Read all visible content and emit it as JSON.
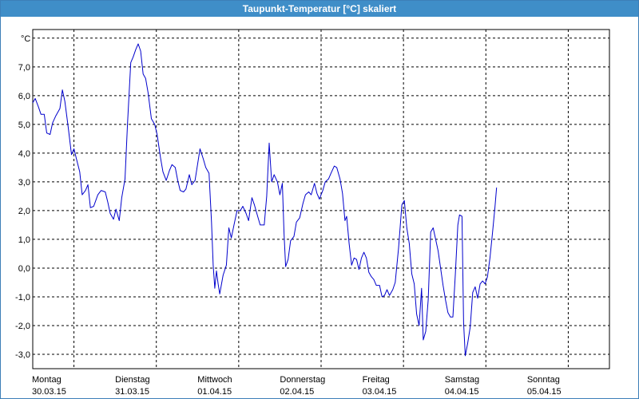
{
  "window": {
    "title": "Taupunkt-Temperatur [°C] skaliert"
  },
  "colors": {
    "line": "#0000cc",
    "grid": "#000000",
    "title_bg": "#3f8ec8"
  },
  "chart_data": {
    "type": "line",
    "title": "Taupunkt-Temperatur [°C] skaliert",
    "ylabel": "°C",
    "xlabel": "",
    "ylim": [
      -3.5,
      8.3
    ],
    "yticks": [
      -3,
      -2,
      -1,
      0,
      1,
      2,
      3,
      4,
      5,
      6,
      7
    ],
    "ytick_labels": [
      "-3,0",
      "-2,0",
      "-1,0",
      "0,0",
      "1,0",
      "2,0",
      "3,0",
      "4,0",
      "5,0",
      "6,0",
      "7,0"
    ],
    "xlim": [
      "30.03.15 00:00",
      "06.04.15 00:00"
    ],
    "xticks": [
      {
        "day": "Montag",
        "date": "30.03.15"
      },
      {
        "day": "Dienstag",
        "date": "31.03.15"
      },
      {
        "day": "Mittwoch",
        "date": "01.04.15"
      },
      {
        "day": "Donnerstag",
        "date": "02.04.15"
      },
      {
        "day": "Freitag",
        "date": "03.04.15"
      },
      {
        "day": "Samstag",
        "date": "04.04.15"
      },
      {
        "day": "Sonntag",
        "date": "05.04.15"
      }
    ],
    "grid": true,
    "x_unit": "days since 30.03.15 00:00",
    "series": [
      {
        "values": [
          [
            0.0,
            5.75
          ],
          [
            0.03,
            5.9
          ],
          [
            0.07,
            5.6
          ],
          [
            0.1,
            5.35
          ],
          [
            0.14,
            5.35
          ],
          [
            0.17,
            4.7
          ],
          [
            0.21,
            4.65
          ],
          [
            0.24,
            5.05
          ],
          [
            0.28,
            5.3
          ],
          [
            0.33,
            5.55
          ],
          [
            0.36,
            6.2
          ],
          [
            0.39,
            5.8
          ],
          [
            0.43,
            4.9
          ],
          [
            0.47,
            3.95
          ],
          [
            0.5,
            4.15
          ],
          [
            0.53,
            3.8
          ],
          [
            0.57,
            3.35
          ],
          [
            0.6,
            2.55
          ],
          [
            0.64,
            2.7
          ],
          [
            0.67,
            2.9
          ],
          [
            0.7,
            2.1
          ],
          [
            0.74,
            2.15
          ],
          [
            0.79,
            2.55
          ],
          [
            0.83,
            2.7
          ],
          [
            0.88,
            2.65
          ],
          [
            0.91,
            2.3
          ],
          [
            0.94,
            1.9
          ],
          [
            0.98,
            1.7
          ],
          [
            1.01,
            2.05
          ],
          [
            1.05,
            1.65
          ],
          [
            1.08,
            2.45
          ],
          [
            1.12,
            3.1
          ],
          [
            1.15,
            5.0
          ],
          [
            1.19,
            7.15
          ],
          [
            1.22,
            7.35
          ],
          [
            1.25,
            7.6
          ],
          [
            1.28,
            7.8
          ],
          [
            1.31,
            7.55
          ],
          [
            1.34,
            6.75
          ],
          [
            1.37,
            6.6
          ],
          [
            1.4,
            6.1
          ],
          [
            1.44,
            5.2
          ],
          [
            1.48,
            5.0
          ],
          [
            1.51,
            4.65
          ],
          [
            1.55,
            3.85
          ],
          [
            1.58,
            3.35
          ],
          [
            1.62,
            3.05
          ],
          [
            1.66,
            3.4
          ],
          [
            1.69,
            3.6
          ],
          [
            1.73,
            3.5
          ],
          [
            1.76,
            3.05
          ],
          [
            1.79,
            2.7
          ],
          [
            1.83,
            2.65
          ],
          [
            1.86,
            2.75
          ],
          [
            1.9,
            3.25
          ],
          [
            1.93,
            2.9
          ],
          [
            1.97,
            3.05
          ],
          [
            2.0,
            3.6
          ],
          [
            2.03,
            4.15
          ],
          [
            2.07,
            3.8
          ],
          [
            2.1,
            3.5
          ],
          [
            2.14,
            3.3
          ],
          [
            2.17,
            1.6
          ],
          [
            2.19,
            0.1
          ],
          [
            2.21,
            -0.7
          ],
          [
            2.23,
            -0.1
          ],
          [
            2.25,
            -0.55
          ],
          [
            2.27,
            -0.9
          ],
          [
            2.31,
            -0.25
          ],
          [
            2.35,
            0.1
          ],
          [
            2.38,
            1.4
          ],
          [
            2.41,
            1.05
          ],
          [
            2.45,
            1.6
          ],
          [
            2.48,
            2.0
          ],
          [
            2.52,
            2.0
          ],
          [
            2.55,
            2.15
          ],
          [
            2.59,
            1.9
          ],
          [
            2.62,
            1.65
          ],
          [
            2.66,
            2.45
          ],
          [
            2.69,
            2.2
          ],
          [
            2.73,
            1.8
          ],
          [
            2.76,
            1.5
          ],
          [
            2.81,
            1.5
          ],
          [
            2.84,
            2.5
          ],
          [
            2.87,
            4.35
          ],
          [
            2.9,
            3.0
          ],
          [
            2.93,
            3.25
          ],
          [
            2.97,
            3.0
          ],
          [
            3.0,
            2.55
          ],
          [
            3.03,
            2.95
          ],
          [
            3.05,
            1.2
          ],
          [
            3.07,
            0.05
          ],
          [
            3.1,
            0.3
          ],
          [
            3.13,
            0.95
          ],
          [
            3.17,
            1.1
          ],
          [
            3.2,
            1.6
          ],
          [
            3.24,
            1.75
          ],
          [
            3.28,
            2.25
          ],
          [
            3.31,
            2.55
          ],
          [
            3.35,
            2.65
          ],
          [
            3.38,
            2.55
          ],
          [
            3.42,
            2.95
          ],
          [
            3.45,
            2.6
          ],
          [
            3.48,
            2.4
          ],
          [
            3.52,
            2.7
          ],
          [
            3.55,
            3.0
          ],
          [
            3.59,
            3.1
          ],
          [
            3.62,
            3.3
          ],
          [
            3.66,
            3.55
          ],
          [
            3.69,
            3.5
          ],
          [
            3.73,
            3.1
          ],
          [
            3.76,
            2.6
          ],
          [
            3.79,
            1.65
          ],
          [
            3.81,
            1.8
          ],
          [
            3.84,
            0.85
          ],
          [
            3.87,
            0.1
          ],
          [
            3.9,
            0.35
          ],
          [
            3.93,
            0.3
          ],
          [
            3.96,
            -0.05
          ],
          [
            3.99,
            0.35
          ],
          [
            4.02,
            0.55
          ],
          [
            4.05,
            0.35
          ],
          [
            4.08,
            -0.15
          ],
          [
            4.11,
            -0.3
          ],
          [
            4.14,
            -0.4
          ],
          [
            4.17,
            -0.6
          ],
          [
            4.21,
            -0.6
          ],
          [
            4.24,
            -1.0
          ],
          [
            4.27,
            -0.95
          ],
          [
            4.3,
            -0.75
          ],
          [
            4.33,
            -0.95
          ],
          [
            4.37,
            -0.75
          ],
          [
            4.4,
            -0.5
          ],
          [
            4.44,
            0.7
          ],
          [
            4.48,
            2.2
          ],
          [
            4.51,
            2.35
          ],
          [
            4.54,
            1.4
          ],
          [
            4.57,
            0.85
          ],
          [
            4.6,
            -0.2
          ],
          [
            4.63,
            -0.55
          ],
          [
            4.66,
            -1.6
          ],
          [
            4.69,
            -2.0
          ],
          [
            4.72,
            -0.7
          ],
          [
            4.74,
            -2.5
          ],
          [
            4.77,
            -2.2
          ],
          [
            4.8,
            -1.1
          ],
          [
            4.83,
            1.25
          ],
          [
            4.86,
            1.4
          ],
          [
            4.89,
            1.0
          ],
          [
            4.92,
            0.6
          ],
          [
            4.95,
            0.0
          ],
          [
            4.98,
            -0.6
          ],
          [
            5.01,
            -1.1
          ],
          [
            5.04,
            -1.55
          ],
          [
            5.07,
            -1.7
          ],
          [
            5.1,
            -1.7
          ],
          [
            5.13,
            -0.2
          ],
          [
            5.16,
            1.5
          ],
          [
            5.18,
            1.85
          ],
          [
            5.21,
            1.8
          ],
          [
            5.23,
            -1.9
          ],
          [
            5.25,
            -3.05
          ],
          [
            5.28,
            -2.6
          ],
          [
            5.31,
            -2.05
          ],
          [
            5.34,
            -0.85
          ],
          [
            5.37,
            -0.65
          ],
          [
            5.4,
            -1.05
          ],
          [
            5.43,
            -0.55
          ],
          [
            5.46,
            -0.45
          ],
          [
            5.49,
            -0.55
          ],
          [
            5.52,
            -0.3
          ],
          [
            5.55,
            0.35
          ],
          [
            5.58,
            1.2
          ],
          [
            5.61,
            2.1
          ],
          [
            5.63,
            2.8
          ]
        ]
      }
    ]
  }
}
